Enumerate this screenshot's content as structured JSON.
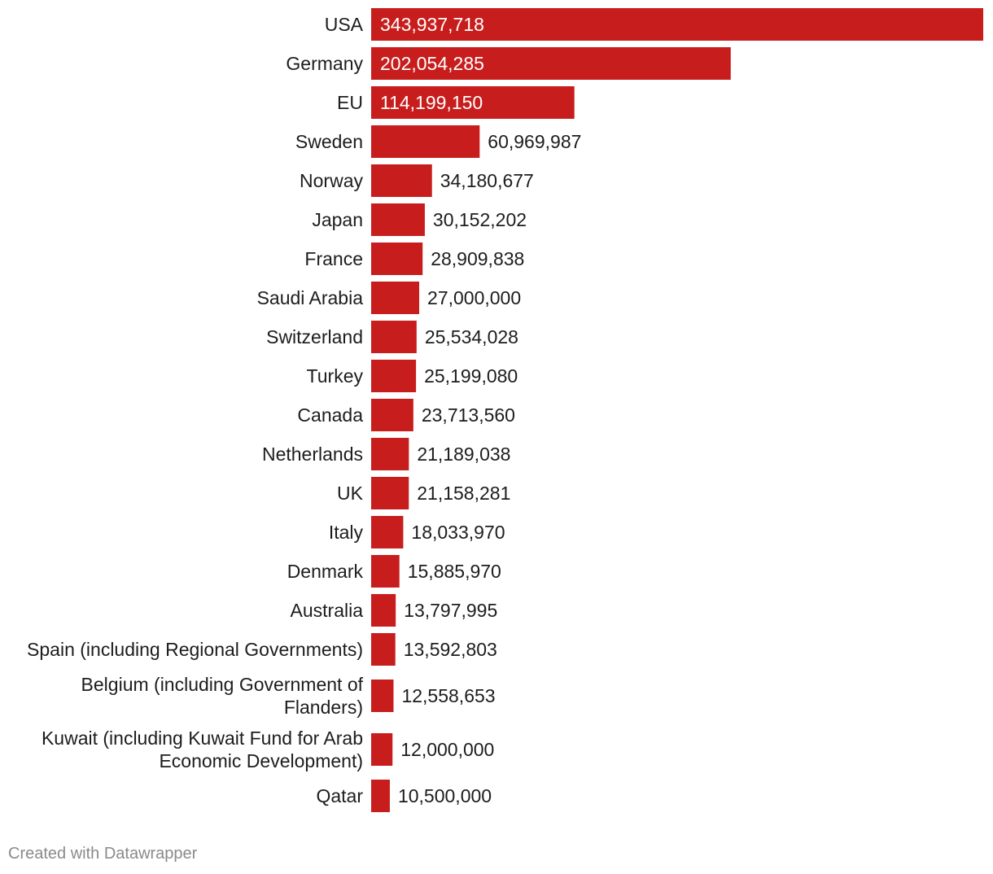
{
  "chart_data": {
    "type": "bar",
    "orientation": "horizontal",
    "categories": [
      "USA",
      "Germany",
      "EU",
      "Sweden",
      "Norway",
      "Japan",
      "France",
      "Saudi Arabia",
      "Switzerland",
      "Turkey",
      "Canada",
      "Netherlands",
      "UK",
      "Italy",
      "Denmark",
      "Australia",
      "Spain (including Regional Governments)",
      "Belgium (including Government of Flanders)",
      "Kuwait (including Kuwait Fund for Arab Economic Development)",
      "Qatar"
    ],
    "values": [
      343937718,
      202054285,
      114199150,
      60969987,
      34180677,
      30152202,
      28909838,
      27000000,
      25534028,
      25199080,
      23713560,
      21189038,
      21158281,
      18033970,
      15885970,
      13797995,
      13592803,
      12558653,
      12000000,
      10500000
    ],
    "value_labels": [
      "343,937,718",
      "202,054,285",
      "114,199,150",
      "60,969,987",
      "34,180,677",
      "30,152,202",
      "28,909,838",
      "27,000,000",
      "25,534,028",
      "25,199,080",
      "23,713,560",
      "21,189,038",
      "21,158,281",
      "18,033,970",
      "15,885,970",
      "13,797,995",
      "13,592,803",
      "12,558,653",
      "12,000,000",
      "10,500,000"
    ],
    "title": "",
    "xlabel": "",
    "ylabel": "",
    "xlim": [
      0,
      343937718
    ],
    "bar_color": "#c71e1d",
    "grid": false,
    "legend": false
  },
  "footer": {
    "credit": "Created with Datawrapper"
  }
}
